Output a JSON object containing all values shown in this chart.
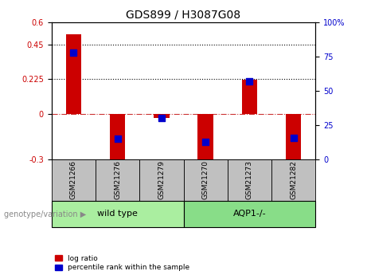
{
  "title": "GDS899 / H3087G08",
  "samples": [
    "GSM21266",
    "GSM21276",
    "GSM21279",
    "GSM21270",
    "GSM21273",
    "GSM21282"
  ],
  "log_ratios": [
    0.52,
    -0.31,
    -0.03,
    -0.31,
    0.22,
    -0.31
  ],
  "percentile_ranks": [
    78,
    15,
    30,
    13,
    57,
    16
  ],
  "ylim_left": [
    -0.3,
    0.6
  ],
  "ylim_right": [
    0,
    100
  ],
  "yticks_left": [
    -0.3,
    0,
    0.225,
    0.45,
    0.6
  ],
  "ytick_labels_left": [
    "-0.3",
    "0",
    "0.225",
    "0.45",
    "0.6"
  ],
  "yticks_right": [
    0,
    25,
    50,
    75,
    100
  ],
  "ytick_labels_right": [
    "0",
    "25",
    "50",
    "75",
    "100%"
  ],
  "hlines": [
    0.225,
    0.45
  ],
  "zero_line": 0,
  "bar_color": "#cc0000",
  "dot_color": "#0000cc",
  "bar_width": 0.35,
  "dot_size": 28,
  "group1_label": "wild type",
  "group2_label": "AQP1-/-",
  "group1_indices": [
    0,
    1,
    2
  ],
  "group2_indices": [
    3,
    4,
    5
  ],
  "group1_color": "#aaeea0",
  "group2_color": "#88dd88",
  "group_bar_color": "#c0c0c0",
  "genotype_label": "genotype/variation",
  "legend_red": "log ratio",
  "legend_blue": "percentile rank within the sample",
  "background_color": "#ffffff",
  "plot_bg_color": "#ffffff",
  "zero_line_color": "#cc3333",
  "tick_label_color_left": "#cc0000",
  "tick_label_color_right": "#0000cc"
}
